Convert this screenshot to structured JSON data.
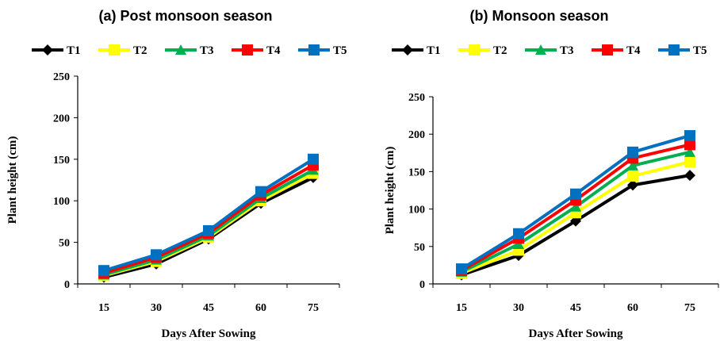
{
  "colors": {
    "T1": "#000000",
    "T2": "#ffff00",
    "T3": "#00b050",
    "T4": "#ff0000",
    "T5": "#0070c0"
  },
  "chart_data": [
    {
      "type": "line",
      "title": "(a)  Post monsoon season",
      "xlabel": "Days After Sowing",
      "ylabel": "Plant height (cm)",
      "categories": [
        "15",
        "30",
        "45",
        "60",
        "75"
      ],
      "yticks": [
        "0",
        "50",
        "100",
        "150",
        "200",
        "250"
      ],
      "ylim": [
        0,
        250
      ],
      "legend_position": "top",
      "grid": false,
      "series": [
        {
          "name": "T1",
          "marker": "diamond",
          "values": [
            8,
            24,
            54,
            97,
            128
          ]
        },
        {
          "name": "T2",
          "marker": "square",
          "values": [
            10,
            27,
            56,
            100,
            133
          ]
        },
        {
          "name": "T3",
          "marker": "triangle",
          "values": [
            11,
            29,
            58,
            103,
            137
          ]
        },
        {
          "name": "T4",
          "marker": "square",
          "values": [
            13,
            32,
            61,
            107,
            143
          ]
        },
        {
          "name": "T5",
          "marker": "square",
          "values": [
            16,
            35,
            64,
            111,
            150
          ]
        }
      ]
    },
    {
      "type": "line",
      "title": "(b) Monsoon season",
      "xlabel": "Days After Sowing",
      "ylabel": "Plant height (cm)",
      "categories": [
        "15",
        "30",
        "45",
        "60",
        "75"
      ],
      "yticks": [
        "0",
        "50",
        "100",
        "150",
        "200",
        "250"
      ],
      "ylim": [
        0,
        250
      ],
      "legend_position": "top",
      "grid": false,
      "series": [
        {
          "name": "T1",
          "marker": "diamond",
          "values": [
            12,
            38,
            84,
            132,
            145
          ]
        },
        {
          "name": "T2",
          "marker": "square",
          "values": [
            14,
            45,
            95,
            144,
            163
          ]
        },
        {
          "name": "T3",
          "marker": "triangle",
          "values": [
            16,
            53,
            103,
            158,
            176
          ]
        },
        {
          "name": "T4",
          "marker": "square",
          "values": [
            18,
            61,
            112,
            168,
            186
          ]
        },
        {
          "name": "T5",
          "marker": "square",
          "values": [
            20,
            67,
            120,
            176,
            198
          ]
        }
      ]
    }
  ]
}
